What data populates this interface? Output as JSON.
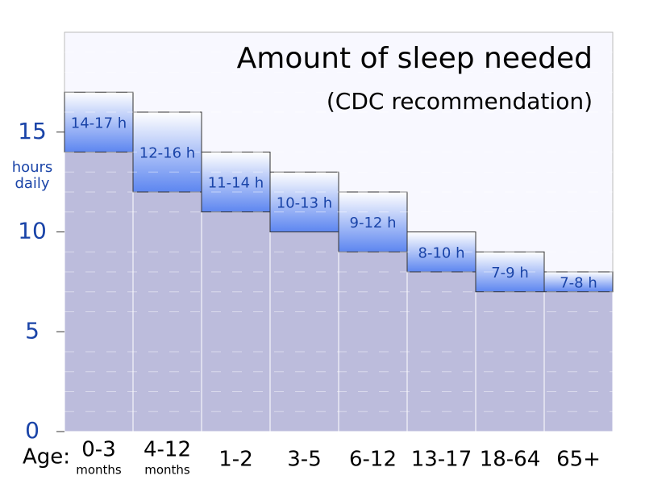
{
  "chart_data": {
    "type": "range_bar",
    "title": "Amount of sleep needed",
    "subtitle": "(CDC recommendation)",
    "y_label": "hours daily",
    "x_label": "Age:",
    "categories": [
      "0-3",
      "4-12",
      "1-2",
      "3-5",
      "6-12",
      "13-17",
      "18-64",
      "65+"
    ],
    "category_notes": [
      "months",
      "months",
      null,
      null,
      null,
      null,
      null,
      null
    ],
    "low": [
      14,
      12,
      11,
      10,
      9,
      8,
      7,
      7
    ],
    "high": [
      17,
      16,
      14,
      13,
      12,
      10,
      9,
      8
    ],
    "value_labels": [
      "14-17 h",
      "12-16 h",
      "11-14 h",
      "10-13 h",
      "9-12 h",
      "8-10 h",
      "7-9 h",
      "7-8 h"
    ],
    "base_color": "#bcbcdc",
    "range_color": "#5d86f0",
    "ylim": [
      0,
      20
    ],
    "yticks": [
      0,
      5,
      10,
      15
    ],
    "minor_yticks": [
      1,
      2,
      3,
      4,
      6,
      7,
      8,
      9,
      11,
      12,
      13,
      14,
      16,
      17,
      18,
      19
    ]
  }
}
